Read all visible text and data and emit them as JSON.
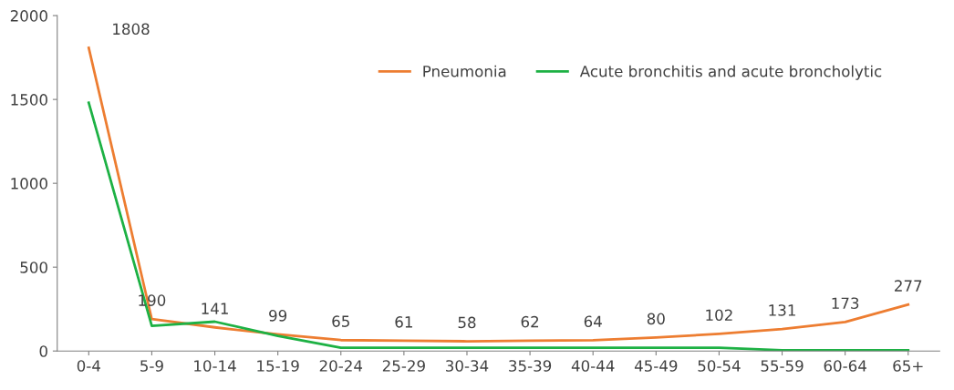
{
  "chart_data": {
    "type": "line",
    "categories": [
      "0-4",
      "5-9",
      "10-14",
      "15-19",
      "20-24",
      "25-29",
      "30-34",
      "35-39",
      "40-44",
      "45-49",
      "50-54",
      "55-59",
      "60-64",
      "65+"
    ],
    "series": [
      {
        "name": "Pneumonia",
        "color": "#ed7d31",
        "values": [
          1808,
          190,
          141,
          99,
          65,
          61,
          58,
          62,
          64,
          80,
          102,
          131,
          173,
          277
        ],
        "data_labels": true
      },
      {
        "name": "Acute bronchitis and acute broncholytic",
        "color": "#1db144",
        "values": [
          1480,
          150,
          175,
          90,
          20,
          20,
          20,
          20,
          20,
          20,
          20,
          5,
          5,
          5
        ]
      }
    ],
    "ylim": [
      0,
      2000
    ],
    "yticks": [
      0,
      500,
      1000,
      1500,
      2000
    ],
    "grid": false,
    "legend": "top right",
    "marker": "none",
    "line_style": "solid"
  }
}
